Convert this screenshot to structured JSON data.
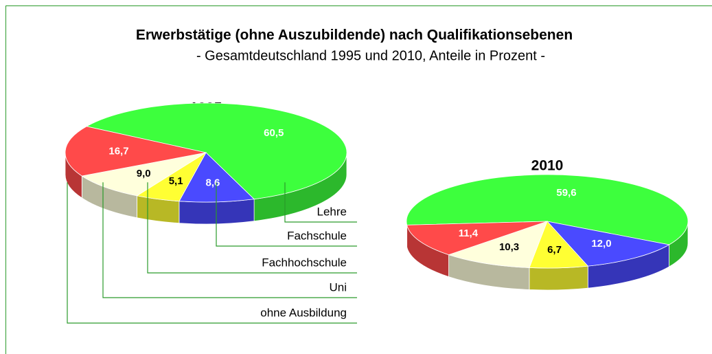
{
  "title": "Erwerbstätige (ohne Auszubildende) nach Qualifikationsebenen",
  "subtitle": "- Gesamtdeutschland 1995 und 2010, Anteile in Prozent -",
  "chart_data": [
    {
      "type": "pie",
      "title": "1995",
      "categories": [
        "Lehre",
        "Fachschule",
        "Fachhochschule",
        "Uni",
        "ohne Ausbildung"
      ],
      "colors": [
        "#3dff3d",
        "#4a4aff",
        "#ffff33",
        "#ffffdc",
        "#ff4a4a"
      ],
      "values": [
        60.5,
        8.6,
        5.1,
        9.0,
        16.7
      ],
      "value_labels": [
        "60,5",
        "8,6",
        "5,1",
        "9,0",
        "16,7"
      ]
    },
    {
      "type": "pie",
      "title": "2010",
      "values": [
        59.6,
        12.0,
        6.7,
        10.3,
        11.4
      ],
      "value_labels": [
        "59,6",
        "12,0",
        "6,7",
        "10,3",
        "11,4"
      ]
    }
  ]
}
